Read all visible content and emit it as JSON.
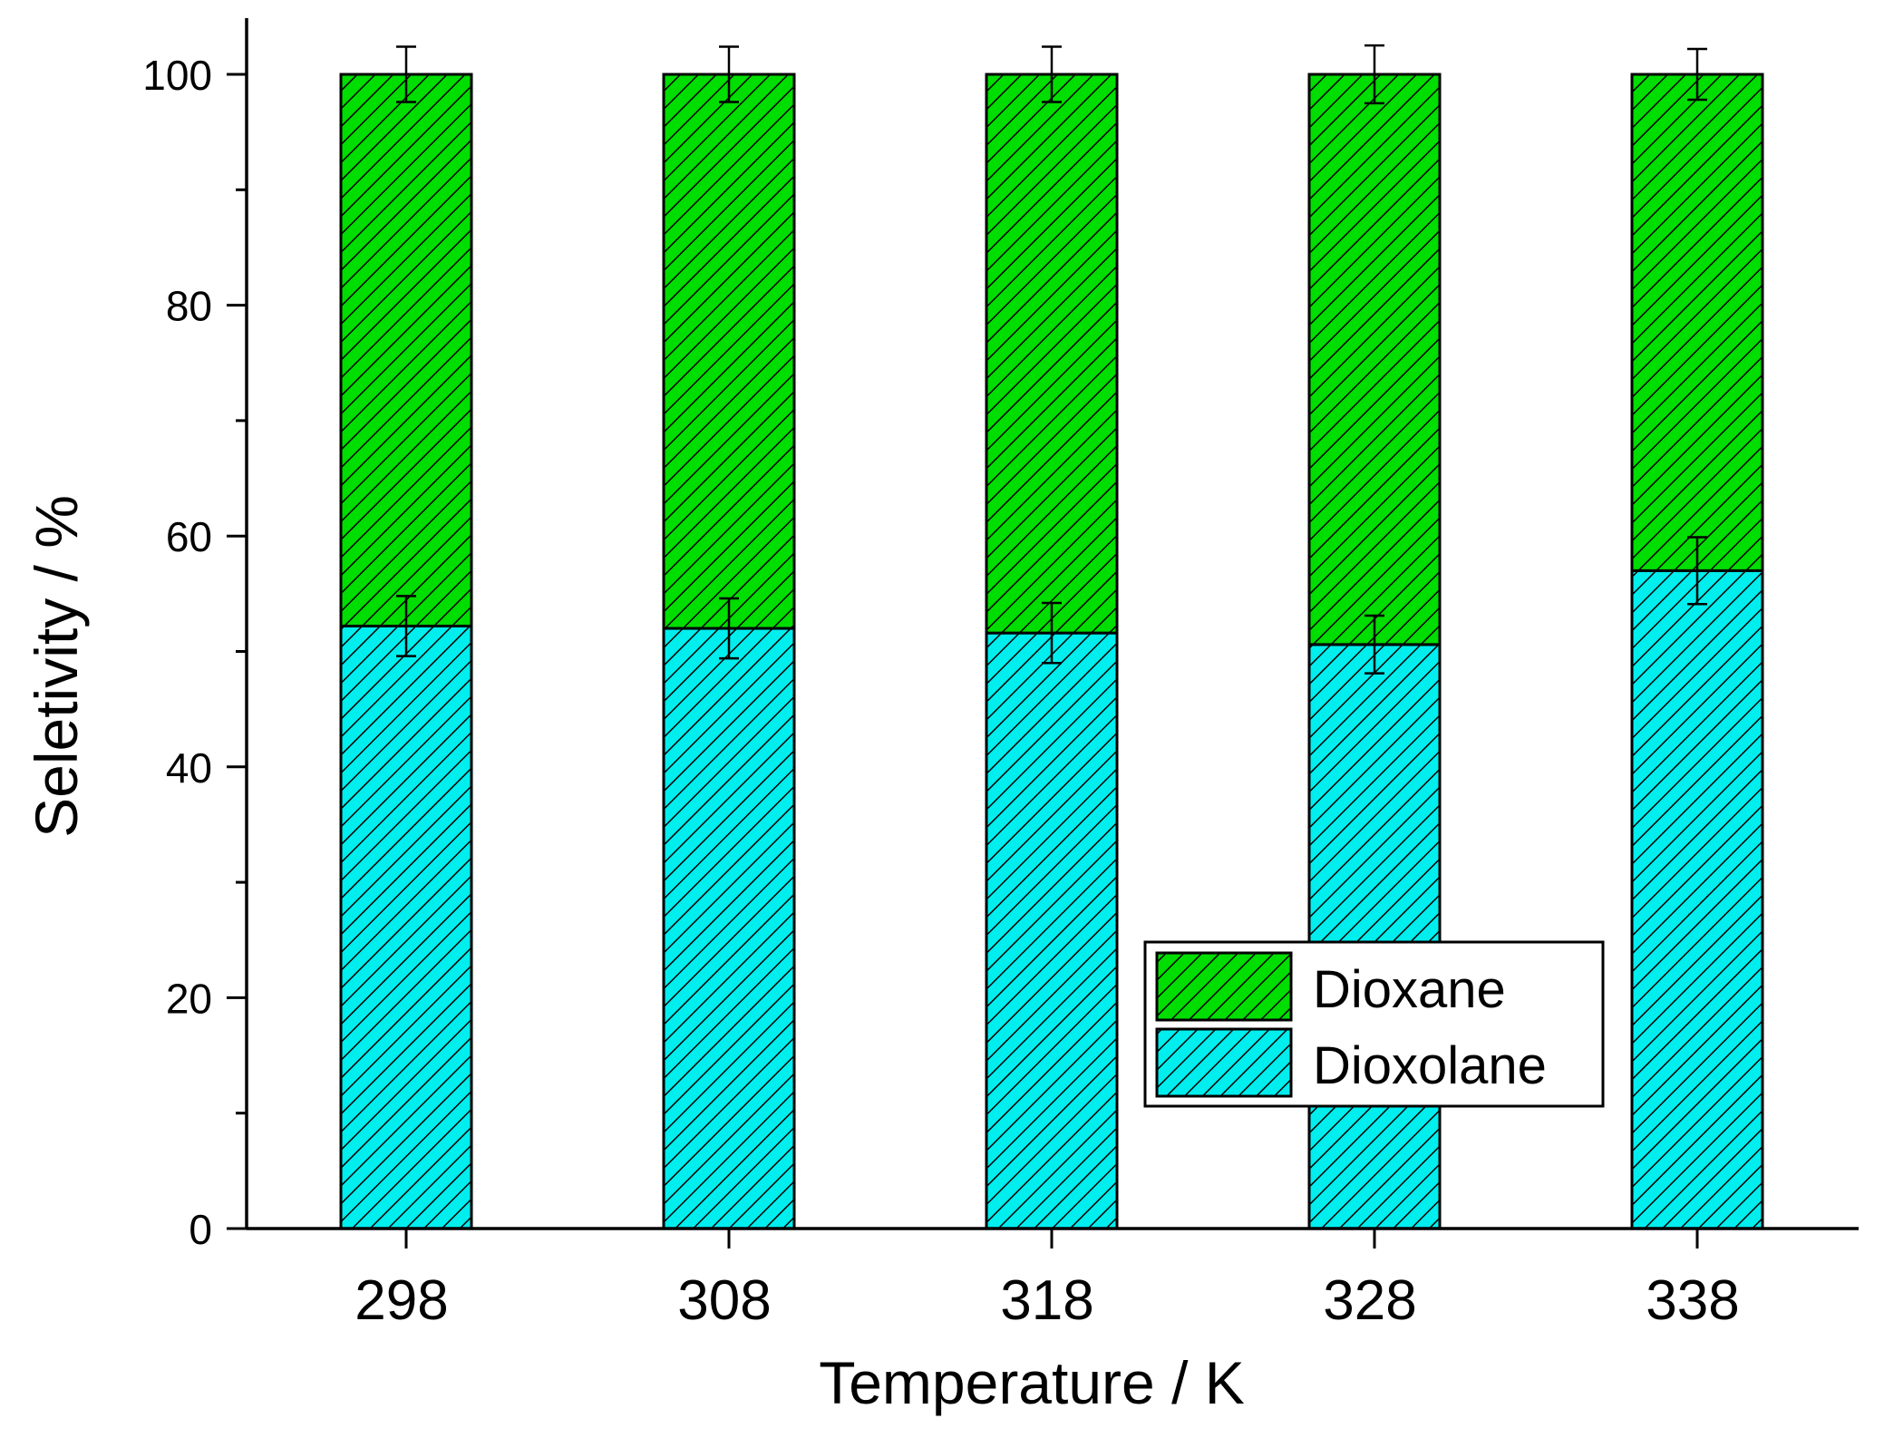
{
  "chart_data": {
    "type": "bar",
    "stacked": true,
    "title": "",
    "xlabel": "Temperature / K",
    "ylabel": "Seletivity / %",
    "categories": [
      "298",
      "308",
      "318",
      "328",
      "338"
    ],
    "ylim": [
      0,
      105
    ],
    "yticks": [
      0,
      20,
      40,
      60,
      80,
      100
    ],
    "yticks_minor": [
      10,
      30,
      50,
      70,
      90
    ],
    "grid": false,
    "legend_position": "bottom-right",
    "series": [
      {
        "name": "Dioxolane",
        "color": "#00EEEE",
        "pattern": "diagonal-hatch",
        "values": [
          52.2,
          52.0,
          51.6,
          50.6,
          57.0
        ],
        "errors": [
          2.6,
          2.6,
          2.6,
          2.5,
          2.9
        ]
      },
      {
        "name": "Dioxane",
        "color": "#00DD00",
        "pattern": "diagonal-hatch",
        "values": [
          47.8,
          48.0,
          48.4,
          49.4,
          43.0
        ],
        "errors": [
          2.4,
          2.4,
          2.4,
          2.5,
          2.2
        ]
      }
    ],
    "legend_order": [
      "Dioxane",
      "Dioxolane"
    ]
  }
}
